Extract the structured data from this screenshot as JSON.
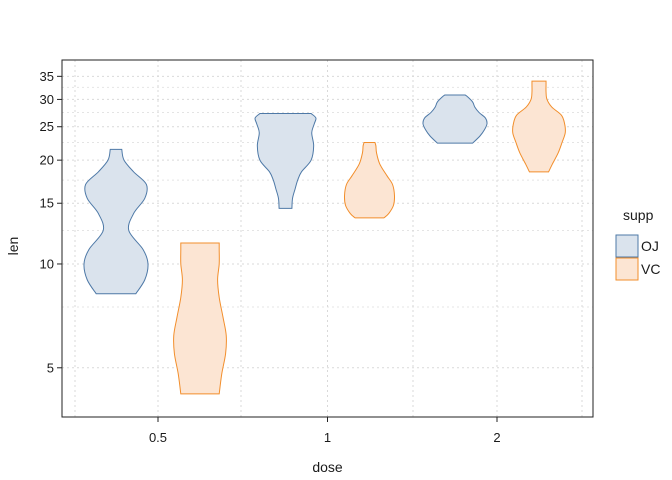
{
  "chart_data": {
    "type": "violin",
    "xlabel": "dose",
    "ylabel": "len",
    "y_scale": "log",
    "ylim": [
      3.9,
      37.5
    ],
    "y_ticks": [
      5,
      10,
      15,
      20,
      25,
      30,
      35
    ],
    "y_tick_labels": [
      "5",
      "10",
      "15",
      "20",
      "25",
      "30",
      "35"
    ],
    "categories": [
      "0.5",
      "1",
      "2"
    ],
    "grid": true,
    "legend": {
      "title": "supp",
      "position": "right"
    },
    "series": [
      {
        "name": "OJ",
        "fill": "#dae3ed",
        "stroke": "#4e79a7",
        "violins": [
          {
            "category": "0.5",
            "min": 8.2,
            "max": 21.5,
            "profile": [
              [
                8.2,
                0.62
              ],
              [
                9.0,
                0.9
              ],
              [
                10.0,
                1.0
              ],
              [
                11.0,
                0.85
              ],
              [
                12.5,
                0.4
              ],
              [
                14.0,
                0.55
              ],
              [
                15.5,
                0.9
              ],
              [
                17.0,
                0.95
              ],
              [
                18.5,
                0.55
              ],
              [
                20.0,
                0.25
              ],
              [
                21.5,
                0.18
              ]
            ]
          },
          {
            "category": "1",
            "min": 14.5,
            "max": 27.3,
            "profile": [
              [
                14.5,
                0.2
              ],
              [
                15.5,
                0.22
              ],
              [
                16.5,
                0.3
              ],
              [
                17.5,
                0.38
              ],
              [
                18.5,
                0.5
              ],
              [
                20.0,
                0.8
              ],
              [
                22.0,
                0.88
              ],
              [
                24.0,
                0.82
              ],
              [
                25.5,
                0.9
              ],
              [
                26.5,
                0.95
              ],
              [
                27.3,
                0.8
              ]
            ]
          },
          {
            "category": "2",
            "min": 22.4,
            "max": 30.9,
            "profile": [
              [
                22.4,
                0.55
              ],
              [
                23.5,
                0.78
              ],
              [
                24.5,
                0.92
              ],
              [
                25.5,
                1.0
              ],
              [
                26.5,
                0.95
              ],
              [
                27.5,
                0.75
              ],
              [
                28.5,
                0.62
              ],
              [
                29.5,
                0.55
              ],
              [
                30.5,
                0.4
              ],
              [
                30.9,
                0.32
              ]
            ]
          }
        ]
      },
      {
        "name": "VC",
        "fill": "#fce5d3",
        "stroke": "#f28e2b",
        "violins": [
          {
            "category": "0.5",
            "min": 4.2,
            "max": 11.5,
            "profile": [
              [
                4.2,
                0.6
              ],
              [
                4.8,
                0.68
              ],
              [
                5.5,
                0.8
              ],
              [
                6.2,
                0.82
              ],
              [
                7.0,
                0.72
              ],
              [
                8.0,
                0.6
              ],
              [
                9.0,
                0.55
              ],
              [
                10.0,
                0.6
              ],
              [
                11.0,
                0.6
              ],
              [
                11.5,
                0.6
              ]
            ]
          },
          {
            "category": "1",
            "min": 13.6,
            "max": 22.5,
            "profile": [
              [
                13.6,
                0.45
              ],
              [
                14.0,
                0.6
              ],
              [
                14.8,
                0.75
              ],
              [
                15.8,
                0.78
              ],
              [
                17.0,
                0.72
              ],
              [
                18.0,
                0.55
              ],
              [
                19.5,
                0.32
              ],
              [
                21.0,
                0.22
              ],
              [
                22.0,
                0.2
              ],
              [
                22.5,
                0.17
              ]
            ]
          },
          {
            "category": "2",
            "min": 18.5,
            "max": 33.9,
            "profile": [
              [
                18.5,
                0.3
              ],
              [
                19.5,
                0.42
              ],
              [
                21.0,
                0.6
              ],
              [
                22.5,
                0.72
              ],
              [
                24.0,
                0.82
              ],
              [
                25.5,
                0.8
              ],
              [
                27.0,
                0.7
              ],
              [
                28.5,
                0.4
              ],
              [
                30.0,
                0.25
              ],
              [
                31.5,
                0.22
              ],
              [
                33.0,
                0.22
              ],
              [
                33.9,
                0.22
              ]
            ]
          }
        ]
      }
    ]
  }
}
